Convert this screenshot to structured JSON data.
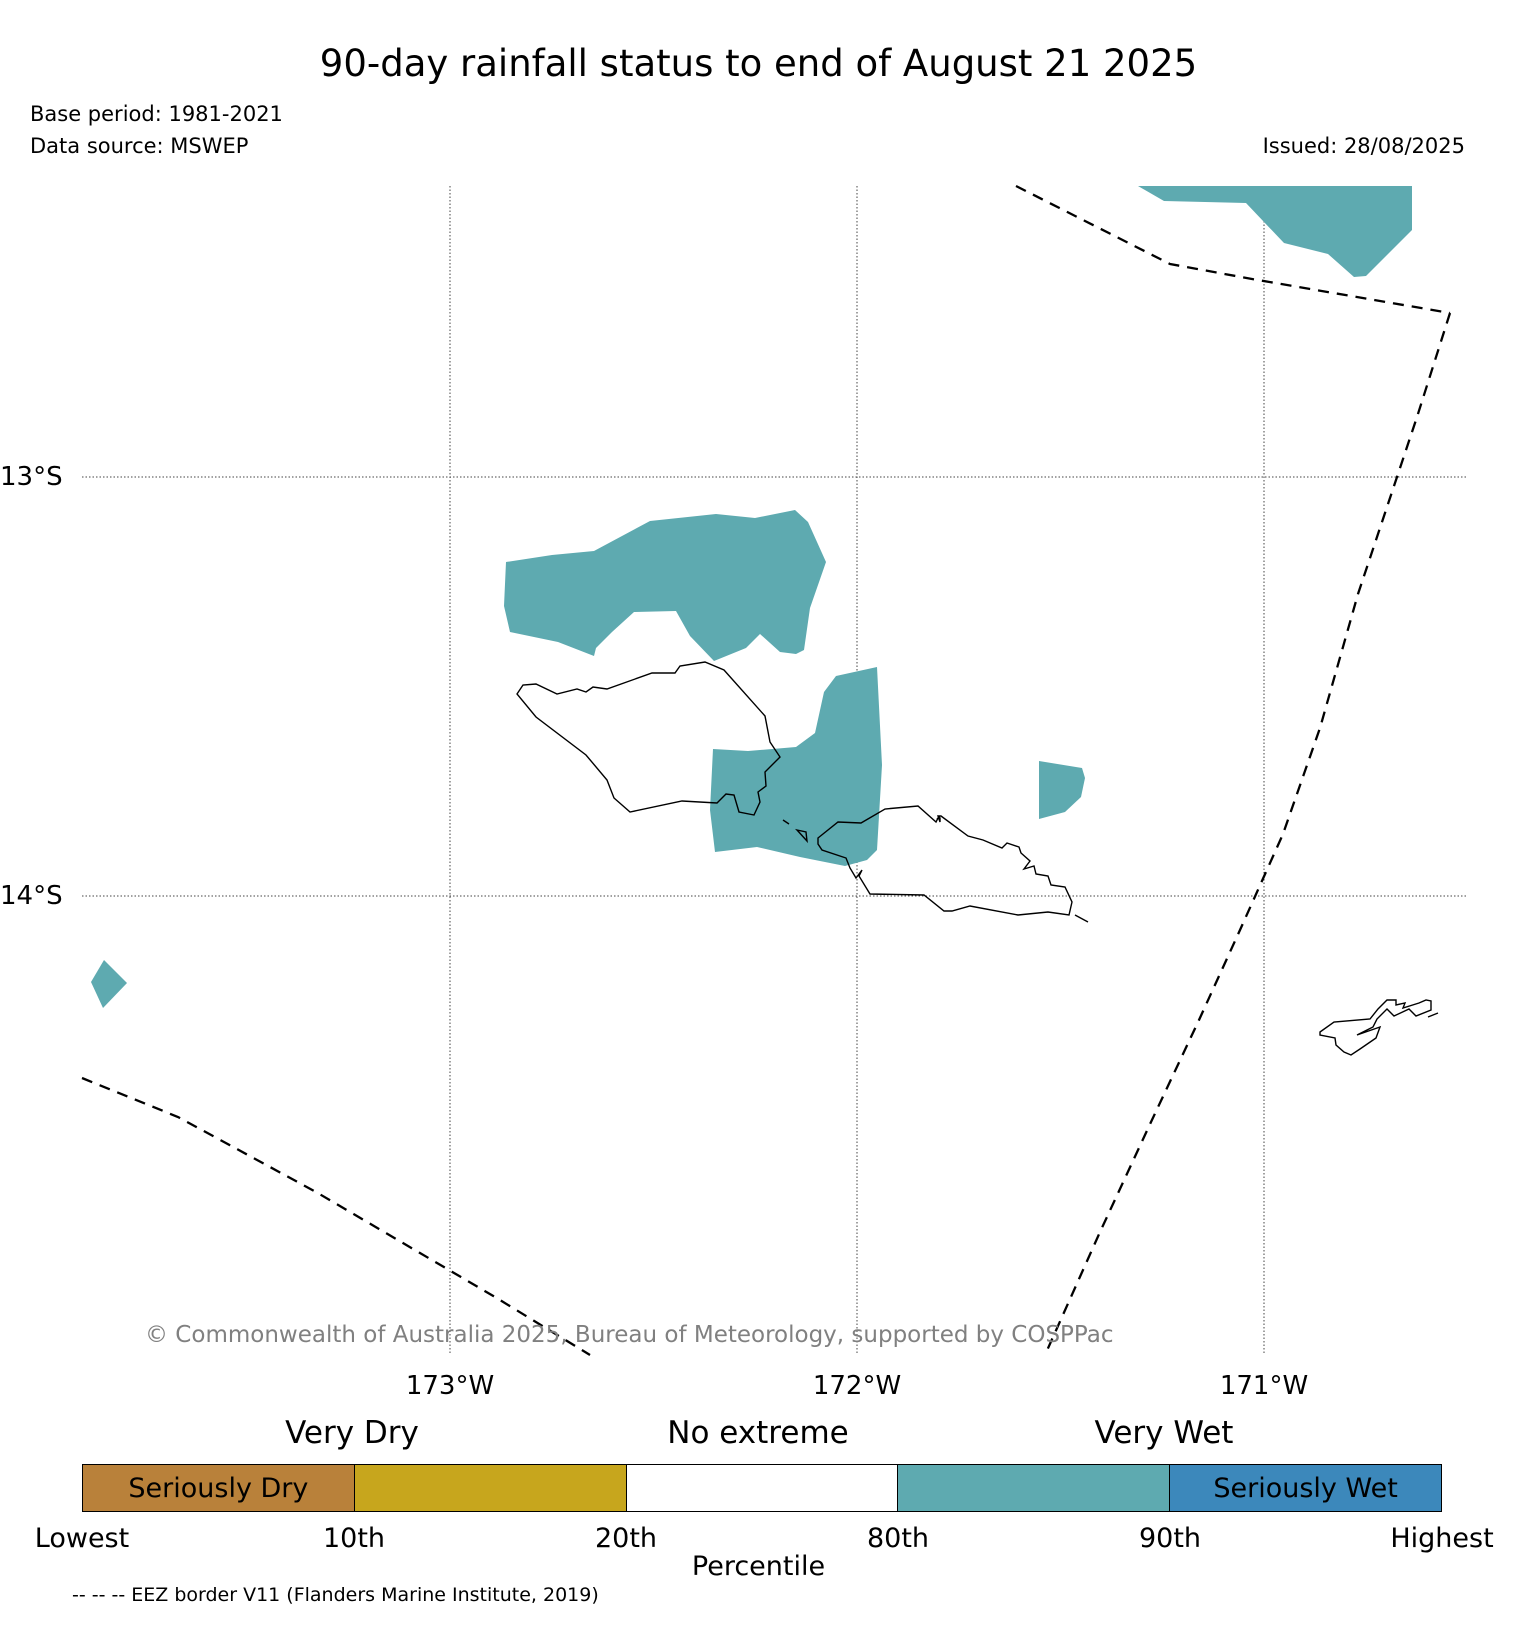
{
  "title": "90-day rainfall status to end of August 21 2025",
  "base_period": "Base period: 1981-2021",
  "data_source": "Data source: MSWEP",
  "issued": "Issued: 28/08/2025",
  "map": {
    "lat_labels": [
      "13°S",
      "14°S"
    ],
    "lon_labels": [
      "173°W",
      "172°W",
      "171°W"
    ],
    "copyright": "© Commonwealth of Australia 2025, Bureau of Meteorology, supported by COSPPac",
    "wet_color": "#5eaab0",
    "eez_border": "dashed"
  },
  "legend": {
    "groups": [
      "Very Dry",
      "No extreme",
      "Very Wet"
    ],
    "segments": [
      {
        "label": "Seriously Dry",
        "color": "#b9813a"
      },
      {
        "label": "",
        "color": "#c7a61d"
      },
      {
        "label": "",
        "color": "#ffffff"
      },
      {
        "label": "",
        "color": "#5eaab0"
      },
      {
        "label": "Seriously Wet",
        "color": "#3c88bb"
      }
    ],
    "ticks": [
      "Lowest",
      "10th",
      "20th",
      "80th",
      "90th",
      "Highest"
    ],
    "axis_label": "Percentile"
  },
  "eez_note": "-- -- -- EEZ border V11 (Flanders Marine Institute, 2019)"
}
